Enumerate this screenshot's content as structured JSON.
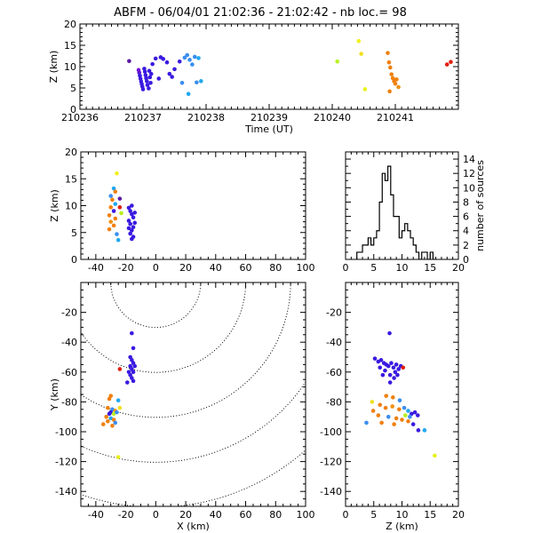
{
  "title": "ABFM - 06/04/01 21:02:36 - 21:02:42 - nb loc.=       98",
  "chart_data": [
    {
      "id": "time_z",
      "type": "scatter",
      "xlabel": "Time (UT)",
      "ylabel": "Z (km)",
      "xlim": [
        210236,
        210242
      ],
      "ylim": [
        0,
        20
      ],
      "xticks": [
        "210236",
        "210237",
        "210238",
        "210239",
        "210240",
        "210241"
      ],
      "yticks": [
        "0",
        "5",
        "10",
        "15",
        "20"
      ],
      "points": [
        {
          "x": 210236.78,
          "y": 11.3,
          "c": "#5b1aa6"
        },
        {
          "x": 210236.93,
          "y": 9.2,
          "c": "#7a10d8"
        },
        {
          "x": 210236.94,
          "y": 8.6,
          "c": "#5a14d8"
        },
        {
          "x": 210236.95,
          "y": 7.9,
          "c": "#3a1ae0"
        },
        {
          "x": 210236.96,
          "y": 7.2,
          "c": "#3a1ae0"
        },
        {
          "x": 210236.97,
          "y": 6.5,
          "c": "#3a1ae0"
        },
        {
          "x": 210236.98,
          "y": 5.9,
          "c": "#3a1ae0"
        },
        {
          "x": 210236.99,
          "y": 5.3,
          "c": "#3a1ae0"
        },
        {
          "x": 210237.0,
          "y": 4.7,
          "c": "#3a1ae0"
        },
        {
          "x": 210237.02,
          "y": 9.5,
          "c": "#3a1ae0"
        },
        {
          "x": 210237.03,
          "y": 8.8,
          "c": "#3a1ae0"
        },
        {
          "x": 210237.04,
          "y": 8.0,
          "c": "#3a1ae0"
        },
        {
          "x": 210237.05,
          "y": 7.3,
          "c": "#3a1ae0"
        },
        {
          "x": 210237.06,
          "y": 6.6,
          "c": "#3a1ae0"
        },
        {
          "x": 210237.07,
          "y": 5.7,
          "c": "#3a1ae0"
        },
        {
          "x": 210237.09,
          "y": 4.9,
          "c": "#3a1ae0"
        },
        {
          "x": 210237.1,
          "y": 9.0,
          "c": "#3a1ae0"
        },
        {
          "x": 210237.11,
          "y": 7.5,
          "c": "#3a1ae0"
        },
        {
          "x": 210237.12,
          "y": 6.2,
          "c": "#3a1ae0"
        },
        {
          "x": 210237.13,
          "y": 8.3,
          "c": "#3a1ae0"
        },
        {
          "x": 210237.15,
          "y": 10.6,
          "c": "#3a1ae0"
        },
        {
          "x": 210237.2,
          "y": 11.9,
          "c": "#3a1ae0"
        },
        {
          "x": 210237.28,
          "y": 12.2,
          "c": "#3a1ae0"
        },
        {
          "x": 210237.32,
          "y": 11.8,
          "c": "#3a1ae0"
        },
        {
          "x": 210237.38,
          "y": 11.0,
          "c": "#3a1ae0"
        },
        {
          "x": 210237.25,
          "y": 7.2,
          "c": "#3a1ae0"
        },
        {
          "x": 210237.42,
          "y": 8.3,
          "c": "#3a1ae0"
        },
        {
          "x": 210237.46,
          "y": 7.6,
          "c": "#3a1ae0"
        },
        {
          "x": 210237.5,
          "y": 9.4,
          "c": "#3a1ae0"
        },
        {
          "x": 210237.58,
          "y": 11.2,
          "c": "#3a1ae0"
        },
        {
          "x": 210237.62,
          "y": 6.2,
          "c": "#3a8ef0"
        },
        {
          "x": 210237.66,
          "y": 12.1,
          "c": "#3a8ef0"
        },
        {
          "x": 210237.7,
          "y": 12.7,
          "c": "#3a8ef0"
        },
        {
          "x": 210237.74,
          "y": 11.6,
          "c": "#3a8ef0"
        },
        {
          "x": 210237.78,
          "y": 10.5,
          "c": "#3a8ef0"
        },
        {
          "x": 210237.82,
          "y": 12.3,
          "c": "#3a8ef0"
        },
        {
          "x": 210237.85,
          "y": 6.3,
          "c": "#3a8ef0"
        },
        {
          "x": 210237.88,
          "y": 12.0,
          "c": "#20a8f0"
        },
        {
          "x": 210237.92,
          "y": 6.6,
          "c": "#20a8f0"
        },
        {
          "x": 210237.72,
          "y": 3.6,
          "c": "#20a8f0"
        },
        {
          "x": 210240.08,
          "y": 11.2,
          "c": "#b8f020"
        },
        {
          "x": 210240.42,
          "y": 16.0,
          "c": "#f0f020"
        },
        {
          "x": 210240.46,
          "y": 13.0,
          "c": "#f0e020"
        },
        {
          "x": 210240.52,
          "y": 4.7,
          "c": "#e8f020"
        },
        {
          "x": 210240.88,
          "y": 13.2,
          "c": "#f08010"
        },
        {
          "x": 210240.9,
          "y": 11.0,
          "c": "#f08010"
        },
        {
          "x": 210240.92,
          "y": 9.8,
          "c": "#f08010"
        },
        {
          "x": 210240.94,
          "y": 8.2,
          "c": "#f08010"
        },
        {
          "x": 210240.96,
          "y": 7.3,
          "c": "#f08010"
        },
        {
          "x": 210240.98,
          "y": 6.6,
          "c": "#f08010"
        },
        {
          "x": 210241.0,
          "y": 6.0,
          "c": "#f08010"
        },
        {
          "x": 210241.02,
          "y": 7.0,
          "c": "#f08010"
        },
        {
          "x": 210240.91,
          "y": 4.2,
          "c": "#f08010"
        },
        {
          "x": 210241.05,
          "y": 5.2,
          "c": "#f09010"
        },
        {
          "x": 210241.82,
          "y": 10.5,
          "c": "#e02010"
        },
        {
          "x": 210241.88,
          "y": 11.1,
          "c": "#e02010"
        }
      ]
    },
    {
      "id": "x_z",
      "type": "scatter",
      "xlabel": "",
      "ylabel": "Z (km)",
      "xlim": [
        -50,
        100
      ],
      "ylim": [
        0,
        20
      ],
      "xticks": [
        "-40",
        "-20",
        "0",
        "20",
        "40",
        "60",
        "80",
        "100"
      ],
      "yticks": [
        "0",
        "5",
        "10",
        "15",
        "20"
      ],
      "points": [
        {
          "x": -26,
          "y": 16.0,
          "c": "#f0f020"
        },
        {
          "x": -28,
          "y": 13.2,
          "c": "#20a8f0"
        },
        {
          "x": -27,
          "y": 12.6,
          "c": "#f08010"
        },
        {
          "x": -30,
          "y": 11.8,
          "c": "#3a8ef0"
        },
        {
          "x": -29,
          "y": 11.1,
          "c": "#f08010"
        },
        {
          "x": -27,
          "y": 10.3,
          "c": "#20a8f0"
        },
        {
          "x": -30,
          "y": 9.7,
          "c": "#f08010"
        },
        {
          "x": -28,
          "y": 9.0,
          "c": "#3a1ae0"
        },
        {
          "x": -31,
          "y": 8.2,
          "c": "#f08010"
        },
        {
          "x": -27,
          "y": 7.6,
          "c": "#f08010"
        },
        {
          "x": -30,
          "y": 7.0,
          "c": "#f09010"
        },
        {
          "x": -28,
          "y": 6.3,
          "c": "#f08010"
        },
        {
          "x": -31,
          "y": 5.6,
          "c": "#f08010"
        },
        {
          "x": -24,
          "y": 11.3,
          "c": "#5b1aa6"
        },
        {
          "x": -24,
          "y": 9.7,
          "c": "#e02010"
        },
        {
          "x": -23,
          "y": 8.6,
          "c": "#b8f020"
        },
        {
          "x": -26,
          "y": 4.7,
          "c": "#3a8ef0"
        },
        {
          "x": -25,
          "y": 3.6,
          "c": "#20a8f0"
        },
        {
          "x": -18,
          "y": 9.6,
          "c": "#3a1ae0"
        },
        {
          "x": -17,
          "y": 9.0,
          "c": "#3a1ae0"
        },
        {
          "x": -16,
          "y": 8.4,
          "c": "#3a1ae0"
        },
        {
          "x": -15,
          "y": 7.8,
          "c": "#3a1ae0"
        },
        {
          "x": -18,
          "y": 7.2,
          "c": "#3a1ae0"
        },
        {
          "x": -17,
          "y": 6.6,
          "c": "#3a1ae0"
        },
        {
          "x": -15,
          "y": 6.0,
          "c": "#3a1ae0"
        },
        {
          "x": -16,
          "y": 5.4,
          "c": "#3a1ae0"
        },
        {
          "x": -17,
          "y": 4.8,
          "c": "#3a1ae0"
        },
        {
          "x": -15,
          "y": 4.2,
          "c": "#3a1ae0"
        },
        {
          "x": -14,
          "y": 8.7,
          "c": "#3a1ae0"
        },
        {
          "x": -16,
          "y": 10.0,
          "c": "#3a1ae0"
        },
        {
          "x": -18,
          "y": 5.8,
          "c": "#3a1ae0"
        },
        {
          "x": -14,
          "y": 6.8,
          "c": "#3a1ae0"
        },
        {
          "x": -16,
          "y": 3.8,
          "c": "#3a1ae0"
        }
      ]
    },
    {
      "id": "histogram",
      "type": "histogram",
      "xlabel": "",
      "ylabel": "number of sources",
      "xlim": [
        0,
        20
      ],
      "ylim": [
        0,
        15
      ],
      "xticks": [
        "0",
        "5",
        "10",
        "15",
        "20"
      ],
      "yticks": [
        "0",
        "2",
        "4",
        "6",
        "8",
        "10",
        "12",
        "14"
      ],
      "bin_width": 0.5,
      "bins_start": [
        2.0,
        2.5,
        3.0,
        3.5,
        4.0,
        4.5,
        5.0,
        5.5,
        6.0,
        6.5,
        7.0,
        7.5,
        8.0,
        8.5,
        9.0,
        9.5,
        10.0,
        10.5,
        11.0,
        11.5,
        12.0,
        12.5,
        13.0,
        13.5,
        14.0,
        14.5,
        15.0,
        15.5
      ],
      "counts": [
        1,
        1,
        2,
        2,
        3,
        2,
        3,
        4,
        8,
        12,
        11,
        13,
        9,
        6,
        6,
        3,
        4,
        5,
        4,
        3,
        2,
        1,
        0,
        1,
        1,
        0,
        1,
        0
      ]
    },
    {
      "id": "x_y",
      "type": "scatter",
      "xlabel": "X (km)",
      "ylabel": "Y (km)",
      "xlim": [
        -50,
        100
      ],
      "ylim": [
        -150,
        0
      ],
      "xticks": [
        "-40",
        "-20",
        "0",
        "20",
        "40",
        "60",
        "80",
        "100"
      ],
      "yticks": [
        "-140",
        "-120",
        "-100",
        "-80",
        "-60",
        "-40",
        "-20"
      ],
      "range_rings_km": [
        30,
        60,
        90,
        120,
        150
      ],
      "range_center": [
        0,
        0
      ],
      "points": [
        {
          "x": -16,
          "y": -34,
          "c": "#3a1ae0"
        },
        {
          "x": -15,
          "y": -44,
          "c": "#3a1ae0"
        },
        {
          "x": -17,
          "y": -50,
          "c": "#3a1ae0"
        },
        {
          "x": -16,
          "y": -52,
          "c": "#3a1ae0"
        },
        {
          "x": -15,
          "y": -54,
          "c": "#3a1ae0"
        },
        {
          "x": -17,
          "y": -56,
          "c": "#3a1ae0"
        },
        {
          "x": -16,
          "y": -58,
          "c": "#3a1ae0"
        },
        {
          "x": -15,
          "y": -60,
          "c": "#3a1ae0"
        },
        {
          "x": -17,
          "y": -62,
          "c": "#3a1ae0"
        },
        {
          "x": -16,
          "y": -64,
          "c": "#3a1ae0"
        },
        {
          "x": -14,
          "y": -56,
          "c": "#3a1ae0"
        },
        {
          "x": -18,
          "y": -60,
          "c": "#3a1ae0"
        },
        {
          "x": -15,
          "y": -66,
          "c": "#3a1ae0"
        },
        {
          "x": -19,
          "y": -67,
          "c": "#3a1ae0"
        },
        {
          "x": -24,
          "y": -58,
          "c": "#e02010"
        },
        {
          "x": -30,
          "y": -76,
          "c": "#f08010"
        },
        {
          "x": -31,
          "y": -78,
          "c": "#f08010"
        },
        {
          "x": -25,
          "y": -79,
          "c": "#20a8f0"
        },
        {
          "x": -32,
          "y": -84,
          "c": "#f08010"
        },
        {
          "x": -29,
          "y": -85,
          "c": "#3a8ef0"
        },
        {
          "x": -30,
          "y": -87,
          "c": "#3a1ae0"
        },
        {
          "x": -27,
          "y": -86,
          "c": "#f09010"
        },
        {
          "x": -31,
          "y": -88,
          "c": "#3a1ae0"
        },
        {
          "x": -28,
          "y": -88,
          "c": "#b8f020"
        },
        {
          "x": -24,
          "y": -84,
          "c": "#f0e020"
        },
        {
          "x": -26,
          "y": -87,
          "c": "#3a8ef0"
        },
        {
          "x": -33,
          "y": -90,
          "c": "#f08010"
        },
        {
          "x": -30,
          "y": -91,
          "c": "#20a8f0"
        },
        {
          "x": -28,
          "y": -92,
          "c": "#f08010"
        },
        {
          "x": -32,
          "y": -93,
          "c": "#f08010"
        },
        {
          "x": -35,
          "y": -95,
          "c": "#f08010"
        },
        {
          "x": -27,
          "y": -94,
          "c": "#3a8ef0"
        },
        {
          "x": -29,
          "y": -96,
          "c": "#f08010"
        },
        {
          "x": -25,
          "y": -117,
          "c": "#e8f020"
        }
      ]
    },
    {
      "id": "z_y",
      "type": "scatter",
      "xlabel": "Z (km)",
      "ylabel": "",
      "xlim": [
        0,
        20
      ],
      "ylim": [
        -150,
        0
      ],
      "xticks": [
        "0",
        "5",
        "10",
        "15",
        "20"
      ],
      "yticks": [
        "-140",
        "-120",
        "-100",
        "-80",
        "-60",
        "-40",
        "-20"
      ],
      "points": [
        {
          "x": 7.8,
          "y": -34,
          "c": "#3a1ae0"
        },
        {
          "x": 5.2,
          "y": -51,
          "c": "#3a1ae0"
        },
        {
          "x": 5.8,
          "y": -53,
          "c": "#3a1ae0"
        },
        {
          "x": 6.3,
          "y": -52,
          "c": "#3a1ae0"
        },
        {
          "x": 6.8,
          "y": -54,
          "c": "#3a1ae0"
        },
        {
          "x": 7.2,
          "y": -55,
          "c": "#3a1ae0"
        },
        {
          "x": 7.6,
          "y": -56,
          "c": "#3a1ae0"
        },
        {
          "x": 8.1,
          "y": -54,
          "c": "#3a1ae0"
        },
        {
          "x": 8.5,
          "y": -57,
          "c": "#3a1ae0"
        },
        {
          "x": 9.0,
          "y": -55,
          "c": "#3a1ae0"
        },
        {
          "x": 9.4,
          "y": -58,
          "c": "#3a1ae0"
        },
        {
          "x": 6.1,
          "y": -57,
          "c": "#3a1ae0"
        },
        {
          "x": 7.0,
          "y": -59,
          "c": "#3a1ae0"
        },
        {
          "x": 8.8,
          "y": -60,
          "c": "#3a1ae0"
        },
        {
          "x": 9.8,
          "y": -56,
          "c": "#3a1ae0"
        },
        {
          "x": 6.6,
          "y": -62,
          "c": "#3a1ae0"
        },
        {
          "x": 7.9,
          "y": -62,
          "c": "#3a1ae0"
        },
        {
          "x": 8.6,
          "y": -64,
          "c": "#3a1ae0"
        },
        {
          "x": 9.2,
          "y": -62,
          "c": "#3a1ae0"
        },
        {
          "x": 10.2,
          "y": -57,
          "c": "#e02010"
        },
        {
          "x": 7.9,
          "y": -67,
          "c": "#3a1ae0"
        },
        {
          "x": 7.2,
          "y": -76,
          "c": "#f08010"
        },
        {
          "x": 8.4,
          "y": -77,
          "c": "#f08010"
        },
        {
          "x": 9.6,
          "y": -79,
          "c": "#3a8ef0"
        },
        {
          "x": 4.7,
          "y": -80,
          "c": "#f0e020"
        },
        {
          "x": 6.1,
          "y": -82,
          "c": "#f08010"
        },
        {
          "x": 7.1,
          "y": -84,
          "c": "#f08010"
        },
        {
          "x": 8.3,
          "y": -83,
          "c": "#f09010"
        },
        {
          "x": 9.5,
          "y": -85,
          "c": "#f08010"
        },
        {
          "x": 10.4,
          "y": -84,
          "c": "#3a8ef0"
        },
        {
          "x": 11.1,
          "y": -86,
          "c": "#20a8f0"
        },
        {
          "x": 11.7,
          "y": -88,
          "c": "#3a1ae0"
        },
        {
          "x": 12.3,
          "y": -87,
          "c": "#3a1ae0"
        },
        {
          "x": 11.4,
          "y": -90,
          "c": "#3a8ef0"
        },
        {
          "x": 10.6,
          "y": -89,
          "c": "#b8f020"
        },
        {
          "x": 12.8,
          "y": -89,
          "c": "#3a1ae0"
        },
        {
          "x": 4.9,
          "y": -86,
          "c": "#f08010"
        },
        {
          "x": 5.8,
          "y": -89,
          "c": "#f08010"
        },
        {
          "x": 7.6,
          "y": -90,
          "c": "#3a8ef0"
        },
        {
          "x": 9.0,
          "y": -91,
          "c": "#f08010"
        },
        {
          "x": 10.0,
          "y": -92,
          "c": "#f08010"
        },
        {
          "x": 11.1,
          "y": -93,
          "c": "#f08010"
        },
        {
          "x": 3.7,
          "y": -94,
          "c": "#3a8ef0"
        },
        {
          "x": 6.4,
          "y": -94,
          "c": "#f08010"
        },
        {
          "x": 8.6,
          "y": -95,
          "c": "#f08010"
        },
        {
          "x": 12.0,
          "y": -95,
          "c": "#3a1ae0"
        },
        {
          "x": 12.9,
          "y": -99,
          "c": "#3a1ae0"
        },
        {
          "x": 14.0,
          "y": -99,
          "c": "#20a8f0"
        },
        {
          "x": 15.8,
          "y": -116,
          "c": "#e8f020"
        }
      ]
    }
  ]
}
